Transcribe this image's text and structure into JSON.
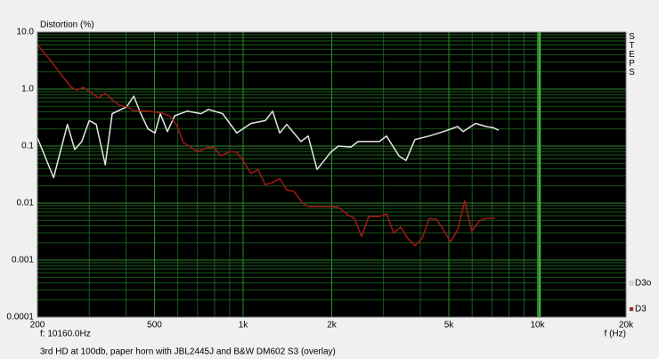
{
  "chart_data": {
    "type": "line",
    "title": "Distortion (%)",
    "x_label": "f (Hz)",
    "side_label": "STEPS",
    "caption": "3rd HD at 100db, paper horn with JBL2445J and B&W DM602 S3 (overlay)",
    "cursor": {
      "value": 10160,
      "label": "f: 10160.0Hz"
    },
    "log_x": true,
    "log_y": true,
    "grid": true,
    "minor_grid": true,
    "background": "#000000",
    "grid_color": "#1f6e1f",
    "legend": "lower right",
    "xlim": [
      200,
      20000
    ],
    "ylim": [
      0.0001,
      10
    ],
    "xticks": [
      200,
      500,
      {
        "value": 1000,
        "label": "1k"
      },
      {
        "value": 2000,
        "label": "2k"
      },
      {
        "value": 5000,
        "label": "5k"
      },
      {
        "value": 10000,
        "label": "10k"
      },
      {
        "value": 20000,
        "label": "20k"
      }
    ],
    "yticks": [
      {
        "value": 10,
        "label": "10.0"
      },
      {
        "value": 1,
        "label": "1.0"
      },
      0.1,
      0.01,
      0.001,
      0.0001
    ],
    "series": [
      {
        "name": "D3o",
        "color": "#e6e6e6",
        "x": [
          200,
          227,
          253,
          268,
          283,
          300,
          317,
          340,
          359,
          402,
          425,
          449,
          475,
          502,
          523,
          553,
          585,
          645,
          720,
          762,
          852,
          952,
          1064,
          1190,
          1259,
          1331,
          1407,
          1573,
          1663,
          1783,
          1993,
          2108,
          2323,
          2456,
          2903,
          3069,
          3386,
          3579,
          3835,
          4286,
          4794,
          5358,
          5589,
          6166,
          6698,
          7082,
          7380
        ],
        "values": [
          0.14,
          0.028,
          0.24,
          0.087,
          0.12,
          0.28,
          0.24,
          0.047,
          0.37,
          0.49,
          0.75,
          0.37,
          0.2,
          0.17,
          0.37,
          0.18,
          0.34,
          0.41,
          0.37,
          0.44,
          0.37,
          0.17,
          0.25,
          0.28,
          0.41,
          0.17,
          0.24,
          0.12,
          0.15,
          0.039,
          0.08,
          0.1,
          0.096,
          0.12,
          0.12,
          0.15,
          0.067,
          0.056,
          0.13,
          0.15,
          0.18,
          0.22,
          0.18,
          0.25,
          0.22,
          0.21,
          0.19
        ]
      },
      {
        "name": "D3",
        "color": "#a01818",
        "x": [
          200,
          212,
          227,
          243,
          261,
          272,
          287,
          304,
          322,
          340,
          359,
          380,
          402,
          425,
          475,
          531,
          561,
          593,
          627,
          663,
          701,
          752,
          795,
          840,
          901,
          952,
          1008,
          1064,
          1125,
          1190,
          1259,
          1331,
          1407,
          1487,
          1595,
          1663,
          1783,
          1993,
          2108,
          2260,
          2389,
          2525,
          2670,
          2903,
          3069,
          3245,
          3431,
          3631,
          3835,
          4055,
          4286,
          4537,
          4794,
          5070,
          5358,
          5662,
          5984,
          6339,
          6698,
          7178
        ],
        "values": [
          6.0,
          4.2,
          2.7,
          1.7,
          1.07,
          0.96,
          1.07,
          0.87,
          0.7,
          0.84,
          0.65,
          0.52,
          0.49,
          0.42,
          0.41,
          0.38,
          0.34,
          0.24,
          0.115,
          0.096,
          0.08,
          0.093,
          0.096,
          0.067,
          0.08,
          0.078,
          0.052,
          0.033,
          0.039,
          0.021,
          0.023,
          0.027,
          0.017,
          0.016,
          0.01,
          0.0087,
          0.0087,
          0.0087,
          0.0084,
          0.0063,
          0.0054,
          0.0026,
          0.0058,
          0.0058,
          0.0065,
          0.003,
          0.0038,
          0.0024,
          0.0018,
          0.0024,
          0.0054,
          0.0052,
          0.0034,
          0.0021,
          0.0034,
          0.011,
          0.0032,
          0.0049,
          0.0054,
          0.0054
        ]
      }
    ]
  }
}
